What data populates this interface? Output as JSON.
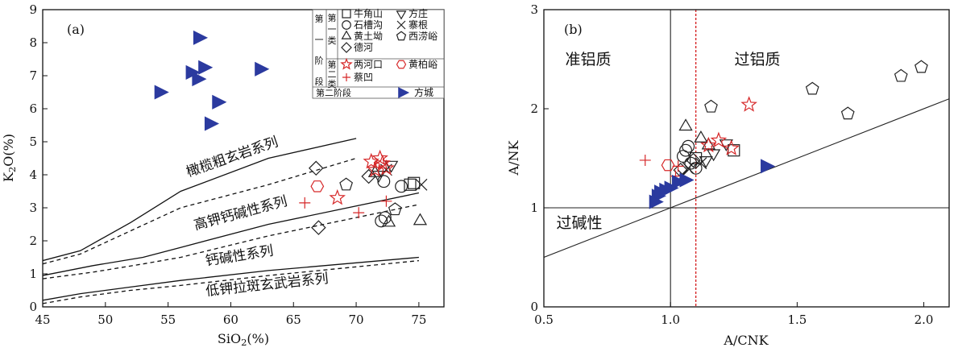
{
  "chart_data": [
    {
      "type": "scatter",
      "panel_label": "(a)",
      "xlabel": "SiO2(%)",
      "ylabel": "K2O(%)",
      "xlim": [
        45,
        77
      ],
      "ylim": [
        0,
        9
      ],
      "xticks": [
        45,
        50,
        55,
        60,
        65,
        70,
        75
      ],
      "yticks": [
        0,
        1,
        2,
        3,
        4,
        5,
        6,
        7,
        8,
        9
      ],
      "grid": false,
      "series_labels": [
        "橄榄粗玄岩系列",
        "高钾钙碱性系列",
        "钙碱性系列",
        "低钾拉斑玄武岩系列"
      ],
      "boundaries": [
        {
          "style": "solid",
          "points": [
            [
              45,
              1.4
            ],
            [
              48,
              1.7
            ],
            [
              52,
              2.55
            ],
            [
              56,
              3.5
            ],
            [
              63,
              4.5
            ],
            [
              70,
              5.1
            ]
          ]
        },
        {
          "style": "dashed",
          "points": [
            [
              45,
              1.3
            ],
            [
              48,
              1.6
            ],
            [
              52,
              2.3
            ],
            [
              56,
              3.0
            ],
            [
              63,
              3.7
            ],
            [
              70,
              4.5
            ]
          ]
        },
        {
          "style": "solid",
          "points": [
            [
              45,
              0.95
            ],
            [
              49,
              1.25
            ],
            [
              53,
              1.5
            ],
            [
              56,
              1.8
            ],
            [
              63,
              2.5
            ],
            [
              75,
              3.45
            ]
          ]
        },
        {
          "style": "dashed",
          "points": [
            [
              45,
              0.85
            ],
            [
              49,
              1.05
            ],
            [
              53,
              1.3
            ],
            [
              56,
              1.5
            ],
            [
              63,
              2.15
            ],
            [
              75,
              3.1
            ]
          ]
        },
        {
          "style": "solid",
          "points": [
            [
              45,
              0.2
            ],
            [
              48,
              0.4
            ],
            [
              52,
              0.6
            ],
            [
              56,
              0.8
            ],
            [
              63,
              1.1
            ],
            [
              75,
              1.5
            ]
          ]
        },
        {
          "style": "dashed",
          "points": [
            [
              45,
              0.1
            ],
            [
              48,
              0.3
            ],
            [
              52,
              0.5
            ],
            [
              56,
              0.65
            ],
            [
              63,
              0.95
            ],
            [
              75,
              1.4
            ]
          ]
        }
      ],
      "series": [
        {
          "name": "牛角山",
          "marker": "square",
          "color": "#222222",
          "points": [
            [
              74.3,
              3.7
            ],
            [
              74.6,
              3.75
            ]
          ]
        },
        {
          "name": "石槽沟",
          "marker": "circle",
          "color": "#222222",
          "points": [
            [
              72.0,
              2.6
            ],
            [
              72.3,
              2.7
            ],
            [
              73.6,
              3.65
            ],
            [
              72.2,
              3.8
            ]
          ]
        },
        {
          "name": "黄土坳",
          "marker": "triangle",
          "color": "#222222",
          "points": [
            [
              72.6,
              2.55
            ],
            [
              75.1,
              2.6
            ],
            [
              71.5,
              4.05
            ]
          ]
        },
        {
          "name": "德河",
          "marker": "diamond",
          "color": "#222222",
          "points": [
            [
              67.0,
              2.4
            ],
            [
              66.8,
              4.2
            ],
            [
              71.0,
              3.95
            ]
          ]
        },
        {
          "name": "方庄",
          "marker": "invtriangle",
          "color": "#222222",
          "points": [
            [
              72.8,
              4.3
            ],
            [
              71.8,
              4.0
            ]
          ]
        },
        {
          "name": "寨根",
          "marker": "x",
          "color": "#222222",
          "points": [
            [
              75.2,
              3.7
            ],
            [
              72.4,
              4.15
            ]
          ]
        },
        {
          "name": "西涝峪",
          "marker": "pentagon",
          "color": "#222222",
          "points": [
            [
              69.2,
              3.7
            ],
            [
              73.1,
              2.95
            ]
          ]
        },
        {
          "name": "两河口",
          "marker": "star",
          "color": "#d62728",
          "points": [
            [
              68.5,
              3.3
            ],
            [
              71.2,
              4.4
            ],
            [
              71.9,
              4.5
            ],
            [
              72.1,
              4.35
            ],
            [
              72.4,
              4.2
            ],
            [
              71.5,
              4.15
            ]
          ]
        },
        {
          "name": "黄柏峪",
          "marker": "hexagon",
          "color": "#d62728",
          "points": [
            [
              66.9,
              3.65
            ]
          ]
        },
        {
          "name": "蔡凹",
          "marker": "plus",
          "color": "#d62728",
          "points": [
            [
              65.9,
              3.15
            ],
            [
              70.2,
              2.85
            ],
            [
              72.4,
              3.2
            ]
          ]
        },
        {
          "name": "方城",
          "marker": "righttriangle",
          "color": "#2b3a9f",
          "points": [
            [
              57.5,
              8.15
            ],
            [
              57.9,
              7.25
            ],
            [
              56.9,
              7.1
            ],
            [
              57.4,
              6.9
            ],
            [
              62.4,
              7.2
            ],
            [
              54.4,
              6.5
            ],
            [
              59.0,
              6.2
            ],
            [
              58.4,
              5.55
            ]
          ]
        }
      ],
      "legend": {
        "group1_label": "第一阶段",
        "group1a_label": "第一类",
        "group1b_label": "第二类",
        "group2_label": "第二阶段",
        "entries_group1a": [
          "牛角山",
          "方庄",
          "石槽沟",
          "寨根",
          "黄土坳",
          "西涝峪",
          "德河"
        ],
        "entries_group1b": [
          "两河口",
          "黄柏峪",
          "蔡凹"
        ],
        "entries_group2": [
          "方城"
        ],
        "placement": "top-right"
      }
    },
    {
      "type": "scatter",
      "panel_label": "(b)",
      "xlabel": "A/CNK",
      "ylabel": "A/NK",
      "xlim": [
        0.5,
        2.1
      ],
      "ylim": [
        0,
        3
      ],
      "xticks": [
        0.5,
        1.0,
        1.5,
        2.0
      ],
      "xticklabels": [
        "0.5",
        "1.0",
        "1.5",
        "2.0"
      ],
      "yticks": [
        0,
        1,
        2,
        3
      ],
      "grid": false,
      "region_labels": [
        "准铝质",
        "过铝质",
        "过碱性"
      ],
      "reference_lines": [
        {
          "style": "solid",
          "color": "#222222",
          "kind": "vertical",
          "x": 1.0
        },
        {
          "style": "solid",
          "color": "#222222",
          "kind": "horizontal",
          "y": 1.0
        },
        {
          "style": "dotted",
          "color": "#d62728",
          "kind": "vertical",
          "x": 1.1
        },
        {
          "style": "solid",
          "color": "#222222",
          "kind": "segment",
          "points": [
            [
              0.5,
              0.5
            ],
            [
              2.1,
              2.1
            ]
          ]
        }
      ],
      "series": [
        {
          "name": "牛角山",
          "marker": "square",
          "color": "#222222",
          "points": [
            [
              1.25,
              1.58
            ],
            [
              1.1,
              1.5
            ]
          ]
        },
        {
          "name": "石槽沟",
          "marker": "circle",
          "color": "#222222",
          "points": [
            [
              1.06,
              1.58
            ],
            [
              1.05,
              1.52
            ],
            [
              1.08,
              1.45
            ],
            [
              1.1,
              1.4
            ],
            [
              1.07,
              1.62
            ]
          ]
        },
        {
          "name": "黄土坳",
          "marker": "triangle",
          "color": "#222222",
          "points": [
            [
              1.06,
              1.82
            ],
            [
              1.12,
              1.7
            ],
            [
              1.15,
              1.63
            ]
          ]
        },
        {
          "name": "德河",
          "marker": "diamond",
          "color": "#222222",
          "points": [
            [
              1.04,
              1.38
            ],
            [
              1.09,
              1.48
            ]
          ]
        },
        {
          "name": "方庄",
          "marker": "invtriangle",
          "color": "#222222",
          "points": [
            [
              1.22,
              1.65
            ],
            [
              1.14,
              1.48
            ],
            [
              1.17,
              1.55
            ]
          ]
        },
        {
          "name": "寨根",
          "marker": "x",
          "color": "#222222",
          "points": [
            [
              1.07,
              1.4
            ],
            [
              1.12,
              1.45
            ],
            [
              1.05,
              1.33
            ]
          ]
        },
        {
          "name": "西涝峪",
          "marker": "pentagon",
          "color": "#222222",
          "points": [
            [
              1.16,
              2.02
            ],
            [
              1.56,
              2.2
            ],
            [
              1.7,
              1.95
            ],
            [
              1.91,
              2.33
            ],
            [
              1.99,
              2.42
            ]
          ]
        },
        {
          "name": "两河口",
          "marker": "star",
          "color": "#d62728",
          "points": [
            [
              1.31,
              2.04
            ],
            [
              1.15,
              1.63
            ],
            [
              1.19,
              1.68
            ],
            [
              1.24,
              1.6
            ]
          ]
        },
        {
          "name": "黄柏峪",
          "marker": "hexagon",
          "color": "#d62728",
          "points": [
            [
              0.99,
              1.43
            ]
          ]
        },
        {
          "name": "蔡凹",
          "marker": "plus",
          "color": "#d62728",
          "points": [
            [
              0.9,
              1.48
            ],
            [
              1.03,
              1.42
            ],
            [
              1.02,
              1.32
            ]
          ]
        },
        {
          "name": "方城",
          "marker": "righttriangle",
          "color": "#2b3a9f",
          "points": [
            [
              0.94,
              1.06
            ],
            [
              0.95,
              1.12
            ],
            [
              0.96,
              1.16
            ],
            [
              0.98,
              1.18
            ],
            [
              1.0,
              1.2
            ],
            [
              1.03,
              1.26
            ],
            [
              1.06,
              1.28
            ],
            [
              1.38,
              1.42
            ]
          ]
        }
      ]
    }
  ]
}
